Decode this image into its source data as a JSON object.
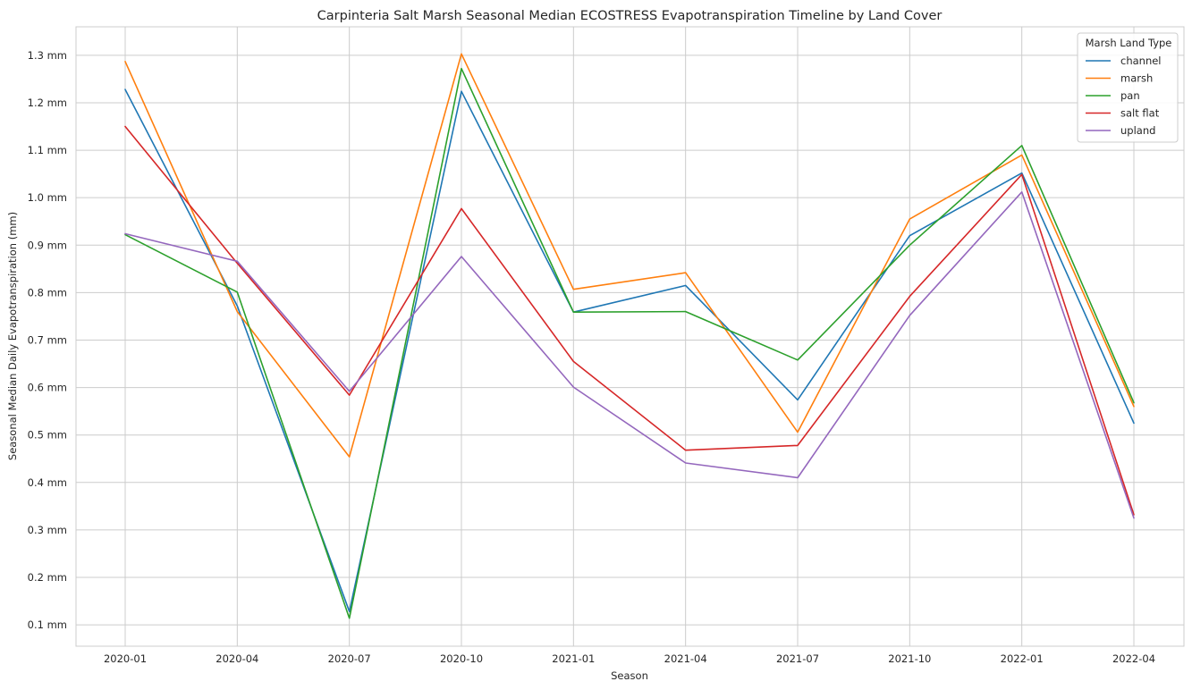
{
  "chart_data": {
    "type": "line",
    "title": "Carpinteria Salt Marsh Seasonal Median ECOSTRESS Evapotranspiration Timeline by Land Cover",
    "xlabel": "Season",
    "ylabel": "Seasonal Median Daily Evapotranspiration (mm)",
    "categories": [
      "2020-01",
      "2020-04",
      "2020-07",
      "2020-10",
      "2021-01",
      "2021-04",
      "2021-07",
      "2021-10",
      "2022-01",
      "2022-04"
    ],
    "ylim": [
      0.055,
      1.36
    ],
    "yticks": [
      0.1,
      0.2,
      0.3,
      0.4,
      0.5,
      0.6,
      0.7,
      0.8,
      0.9,
      1.0,
      1.1,
      1.2,
      1.3
    ],
    "ytick_labels": [
      "0.1 mm",
      "0.2 mm",
      "0.3 mm",
      "0.4 mm",
      "0.5 mm",
      "0.6 mm",
      "0.7 mm",
      "0.8 mm",
      "0.9 mm",
      "1.0 mm",
      "1.1 mm",
      "1.2 mm",
      "1.3 mm"
    ],
    "grid": true,
    "legend": {
      "title": "Marsh Land Type",
      "placement": "top-right"
    },
    "series": [
      {
        "name": "channel",
        "color": "#1f77b4",
        "values": [
          1.228,
          0.772,
          0.128,
          1.224,
          0.759,
          0.815,
          0.574,
          0.92,
          1.052,
          0.525
        ]
      },
      {
        "name": "marsh",
        "color": "#ff7f0e",
        "values": [
          1.287,
          0.76,
          0.454,
          1.303,
          0.807,
          0.842,
          0.506,
          0.955,
          1.09,
          0.56
        ]
      },
      {
        "name": "pan",
        "color": "#2ca02c",
        "values": [
          0.922,
          0.801,
          0.114,
          1.272,
          0.759,
          0.76,
          0.658,
          0.9,
          1.11,
          0.568
        ]
      },
      {
        "name": "salt flat",
        "color": "#d62728",
        "values": [
          1.15,
          0.862,
          0.584,
          0.977,
          0.655,
          0.468,
          0.478,
          0.792,
          1.049,
          0.332
        ]
      },
      {
        "name": "upland",
        "color": "#9467bd",
        "values": [
          0.924,
          0.866,
          0.592,
          0.876,
          0.601,
          0.441,
          0.41,
          0.752,
          1.012,
          0.325
        ]
      }
    ]
  }
}
